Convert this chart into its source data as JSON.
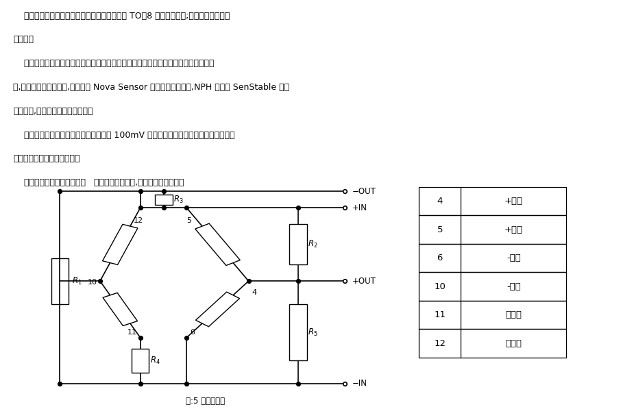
{
  "bg_color": "#ffffff",
  "text_color": "#000000",
  "para1": "    这种产品是将已集成化的敏感芯片置于标准的 TO－8 型电子外壳内;以便安装到印刷线路板上。",
  "para2": "    新的超大规模集成电路技术和微细加工技术已经把惠斯登电桥扩散在微细加工的硅片上,直接实现力一电转换,与所有的 Nova Sensor 扩散硅传感器一样,NPH 应用了 SenStable 温度补偿技术,使之具有优异的稳定性。",
  "para3": "    用户可以把标准信号调理电路用来放大 100mV 的输出信号。传感器可以跟大多数非腐蚀气体和干燥空气介质兼容。",
  "para4": "    经激光蚀刻的厚膜电阻网络   在混合陶瓷基片上,由它提供温度补偿。",
  "title_lines": [
    "    这种产品是将已集成化的敏感芯片置于标准的 TO－8 型电子外壳内;以便安装到印刷线",
    "路板上。",
    "    新的超大规模集成电路技术和微细加工技术已经把惠斯登电桥扩散在微细加工的硅片",
    "上,直接实现力一电转换,与所有的 Nova Sensor 扩散硅传感器一样,NPH 应用了 SenStable 温度",
    "补偿技术,使之具有优异的稳定性。",
    "    用户可以把标准信号调理电路用来放大 100mV 的输出信号。传感器可以跟大多数非腐",
    "蚀气体和干燥空气介质兼容。",
    "    经激光蚀刻的厚膜电阻网络   在混合陶瓷基片上,由它提供温度补偿。"
  ],
  "table_data": [
    [
      "4",
      "+输出"
    ],
    [
      "5",
      "+输人"
    ],
    [
      "6",
      "-输人"
    ],
    [
      "10",
      "-输出"
    ],
    [
      "11",
      "不连接"
    ],
    [
      "12",
      "不连接"
    ]
  ],
  "note": "注:5 接芯片基底"
}
